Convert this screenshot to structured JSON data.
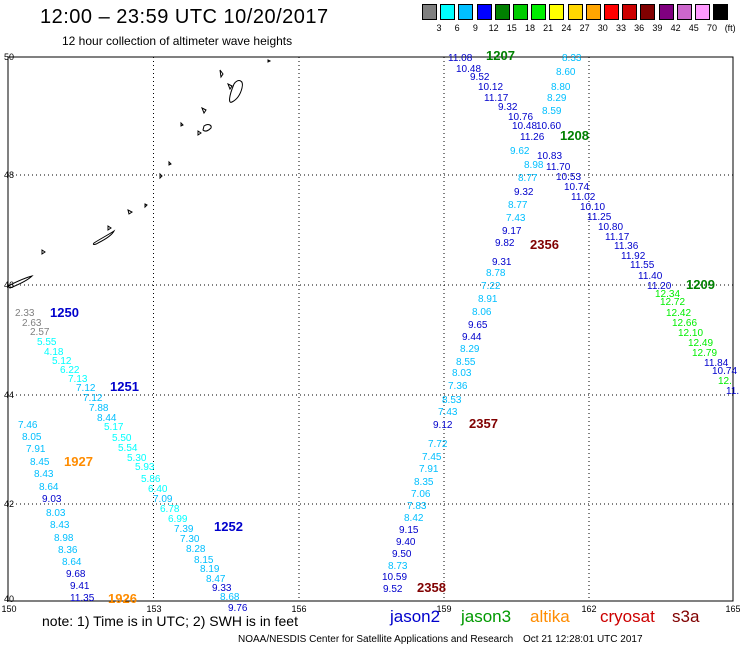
{
  "header": {
    "title": "12:00 – 23:59 UTC 10/20/2017",
    "subtitle": "12 hour collection of altimeter wave heights"
  },
  "legend": {
    "colors": [
      "#808080",
      "#00ffff",
      "#00bfff",
      "#0000ff",
      "#008000",
      "#00cc00",
      "#00ee00",
      "#ffff00",
      "#ffd700",
      "#ffa500",
      "#ff0000",
      "#cc0000",
      "#800000",
      "#800080",
      "#cc66cc",
      "#ff99ff",
      "#000000"
    ],
    "labels": [
      "3",
      "6",
      "9",
      "12",
      "15",
      "18",
      "21",
      "24",
      "27",
      "30",
      "33",
      "36",
      "39",
      "42",
      "45",
      "70",
      "(ft)"
    ]
  },
  "axes": {
    "x_ticks": [
      "150",
      "153",
      "156",
      "159",
      "162",
      "165"
    ],
    "y_ticks": [
      "50",
      "48",
      "46",
      "44",
      "42",
      "40"
    ]
  },
  "track_times": [
    {
      "text": "1207",
      "color": "#008000"
    },
    {
      "text": "1208",
      "color": "#008000"
    },
    {
      "text": "1209",
      "color": "#008000"
    },
    {
      "text": "2356",
      "color": "#800000"
    },
    {
      "text": "2357",
      "color": "#800000"
    },
    {
      "text": "2358",
      "color": "#800000"
    },
    {
      "text": "1250",
      "color": "#0000cc"
    },
    {
      "text": "1251",
      "color": "#0000cc"
    },
    {
      "text": "1252",
      "color": "#0000cc"
    },
    {
      "text": "1927",
      "color": "#ff8c00"
    },
    {
      "text": "1926",
      "color": "#ff8c00"
    }
  ],
  "wave_heights": [
    {
      "v": "11.08",
      "c": "#0000cc"
    },
    {
      "v": "10.48",
      "c": "#0000cc"
    },
    {
      "v": "9.52",
      "c": "#0000cc"
    },
    {
      "v": "10.12",
      "c": "#0000cc"
    },
    {
      "v": "11.17",
      "c": "#0000cc"
    },
    {
      "v": "9.32",
      "c": "#0000cc"
    },
    {
      "v": "10.76",
      "c": "#0000cc"
    },
    {
      "v": "10.48",
      "c": "#0000cc"
    },
    {
      "v": "11.26",
      "c": "#0000cc"
    },
    {
      "v": "10.83",
      "c": "#0000cc"
    },
    {
      "v": "11.70",
      "c": "#0000cc"
    },
    {
      "v": "10.53",
      "c": "#0000cc"
    },
    {
      "v": "10.74",
      "c": "#0000cc"
    },
    {
      "v": "11.02",
      "c": "#0000cc"
    },
    {
      "v": "10.10",
      "c": "#0000cc"
    },
    {
      "v": "11.25",
      "c": "#0000cc"
    },
    {
      "v": "10.80",
      "c": "#0000cc"
    },
    {
      "v": "11.17",
      "c": "#0000cc"
    },
    {
      "v": "11.36",
      "c": "#0000cc"
    },
    {
      "v": "11.92",
      "c": "#0000cc"
    },
    {
      "v": "11.55",
      "c": "#0000cc"
    },
    {
      "v": "11.40",
      "c": "#0000cc"
    },
    {
      "v": "11.20",
      "c": "#0000cc"
    },
    {
      "v": "8.33",
      "c": "#00bfff"
    },
    {
      "v": "8.60",
      "c": "#00bfff"
    },
    {
      "v": "8.80",
      "c": "#00bfff"
    },
    {
      "v": "8.29",
      "c": "#00bfff"
    },
    {
      "v": "8.59",
      "c": "#00bfff"
    },
    {
      "v": "10.60",
      "c": "#0000cc"
    },
    {
      "v": "9.62",
      "c": "#00bfff"
    },
    {
      "v": "8.98",
      "c": "#00bfff"
    },
    {
      "v": "8.77",
      "c": "#00bfff"
    },
    {
      "v": "9.32",
      "c": "#0000cc"
    },
    {
      "v": "8.77",
      "c": "#00bfff"
    },
    {
      "v": "7.43",
      "c": "#00bfff"
    },
    {
      "v": "9.17",
      "c": "#0000cc"
    },
    {
      "v": "9.82",
      "c": "#0000cc"
    },
    {
      "v": "9.31",
      "c": "#0000cc"
    },
    {
      "v": "8.78",
      "c": "#00bfff"
    },
    {
      "v": "7.22",
      "c": "#00bfff"
    },
    {
      "v": "8.91",
      "c": "#00bfff"
    },
    {
      "v": "8.06",
      "c": "#00bfff"
    },
    {
      "v": "9.65",
      "c": "#0000cc"
    },
    {
      "v": "9.44",
      "c": "#0000cc"
    },
    {
      "v": "8.29",
      "c": "#00bfff"
    },
    {
      "v": "8.55",
      "c": "#00bfff"
    },
    {
      "v": "8.03",
      "c": "#00bfff"
    },
    {
      "v": "7.36",
      "c": "#00bfff"
    },
    {
      "v": "8.53",
      "c": "#00bfff"
    },
    {
      "v": "7.43",
      "c": "#00bfff"
    },
    {
      "v": "9.12",
      "c": "#0000cc"
    },
    {
      "v": "7.72",
      "c": "#00bfff"
    },
    {
      "v": "7.45",
      "c": "#00bfff"
    },
    {
      "v": "7.91",
      "c": "#00bfff"
    },
    {
      "v": "8.35",
      "c": "#00bfff"
    },
    {
      "v": "7.06",
      "c": "#00bfff"
    },
    {
      "v": "7.83",
      "c": "#00bfff"
    },
    {
      "v": "8.42",
      "c": "#00bfff"
    },
    {
      "v": "9.15",
      "c": "#0000cc"
    },
    {
      "v": "9.40",
      "c": "#0000cc"
    },
    {
      "v": "9.50",
      "c": "#0000cc"
    },
    {
      "v": "8.73",
      "c": "#00bfff"
    },
    {
      "v": "10.59",
      "c": "#0000cc"
    },
    {
      "v": "9.52",
      "c": "#0000cc"
    },
    {
      "v": "12.34",
      "c": "#00ee00"
    },
    {
      "v": "12.72",
      "c": "#00ee00"
    },
    {
      "v": "12.42",
      "c": "#00ee00"
    },
    {
      "v": "12.66",
      "c": "#00ee00"
    },
    {
      "v": "12.10",
      "c": "#00ee00"
    },
    {
      "v": "12.49",
      "c": "#00ee00"
    },
    {
      "v": "12.79",
      "c": "#00ee00"
    },
    {
      "v": "11.84",
      "c": "#0000cc"
    },
    {
      "v": "10.74",
      "c": "#0000cc"
    },
    {
      "v": "12.",
      "c": "#00ee00"
    },
    {
      "v": "11.",
      "c": "#0000cc"
    },
    {
      "v": "2.33",
      "c": "#808080"
    },
    {
      "v": "2.63",
      "c": "#808080"
    },
    {
      "v": "2.57",
      "c": "#808080"
    },
    {
      "v": "5.55",
      "c": "#00ffff"
    },
    {
      "v": "4.18",
      "c": "#00ffff"
    },
    {
      "v": "5.12",
      "c": "#00ffff"
    },
    {
      "v": "6.22",
      "c": "#00ffff"
    },
    {
      "v": "7.13",
      "c": "#00ffff"
    },
    {
      "v": "7.12",
      "c": "#00bfff"
    },
    {
      "v": "7.12",
      "c": "#00bfff"
    },
    {
      "v": "7.88",
      "c": "#00bfff"
    },
    {
      "v": "8.44",
      "c": "#00bfff"
    },
    {
      "v": "5.17",
      "c": "#00ffff"
    },
    {
      "v": "5.50",
      "c": "#00ffff"
    },
    {
      "v": "5.54",
      "c": "#00ffff"
    },
    {
      "v": "5.30",
      "c": "#00ffff"
    },
    {
      "v": "5.93",
      "c": "#00ffff"
    },
    {
      "v": "5.86",
      "c": "#00ffff"
    },
    {
      "v": "6.40",
      "c": "#00ffff"
    },
    {
      "v": "7.09",
      "c": "#00bfff"
    },
    {
      "v": "6.78",
      "c": "#00ffff"
    },
    {
      "v": "6.99",
      "c": "#00ffff"
    },
    {
      "v": "7.39",
      "c": "#00bfff"
    },
    {
      "v": "7.30",
      "c": "#00bfff"
    },
    {
      "v": "8.28",
      "c": "#00bfff"
    },
    {
      "v": "8.15",
      "c": "#00bfff"
    },
    {
      "v": "8.19",
      "c": "#00bfff"
    },
    {
      "v": "8.47",
      "c": "#00bfff"
    },
    {
      "v": "9.33",
      "c": "#0000cc"
    },
    {
      "v": "8.68",
      "c": "#00bfff"
    },
    {
      "v": "9.76",
      "c": "#0000cc"
    },
    {
      "v": "7.46",
      "c": "#00bfff"
    },
    {
      "v": "8.05",
      "c": "#00bfff"
    },
    {
      "v": "7.91",
      "c": "#00bfff"
    },
    {
      "v": "8.45",
      "c": "#00bfff"
    },
    {
      "v": "8.43",
      "c": "#00bfff"
    },
    {
      "v": "8.64",
      "c": "#00bfff"
    },
    {
      "v": "9.03",
      "c": "#0000cc"
    },
    {
      "v": "8.03",
      "c": "#00bfff"
    },
    {
      "v": "8.43",
      "c": "#00bfff"
    },
    {
      "v": "8.98",
      "c": "#00bfff"
    },
    {
      "v": "8.36",
      "c": "#00bfff"
    },
    {
      "v": "8.64",
      "c": "#00bfff"
    },
    {
      "v": "9.68",
      "c": "#0000cc"
    },
    {
      "v": "9.41",
      "c": "#0000cc"
    },
    {
      "v": "11.35",
      "c": "#0000cc"
    }
  ],
  "footer": {
    "note": "note:  1) Time is in UTC;  2) SWH is in feet",
    "credit": "NOAA/NESDIS Center for Satellite Applications and Research",
    "timestamp": "Oct 21 12:28:01 UTC 2017",
    "satellites": [
      {
        "name": "jason2",
        "color": "#0000cc"
      },
      {
        "name": "jason3",
        "color": "#009900"
      },
      {
        "name": "altika",
        "color": "#ff8c00"
      },
      {
        "name": "cryosat",
        "color": "#cc0000"
      },
      {
        "name": "s3a",
        "color": "#800000"
      }
    ]
  }
}
